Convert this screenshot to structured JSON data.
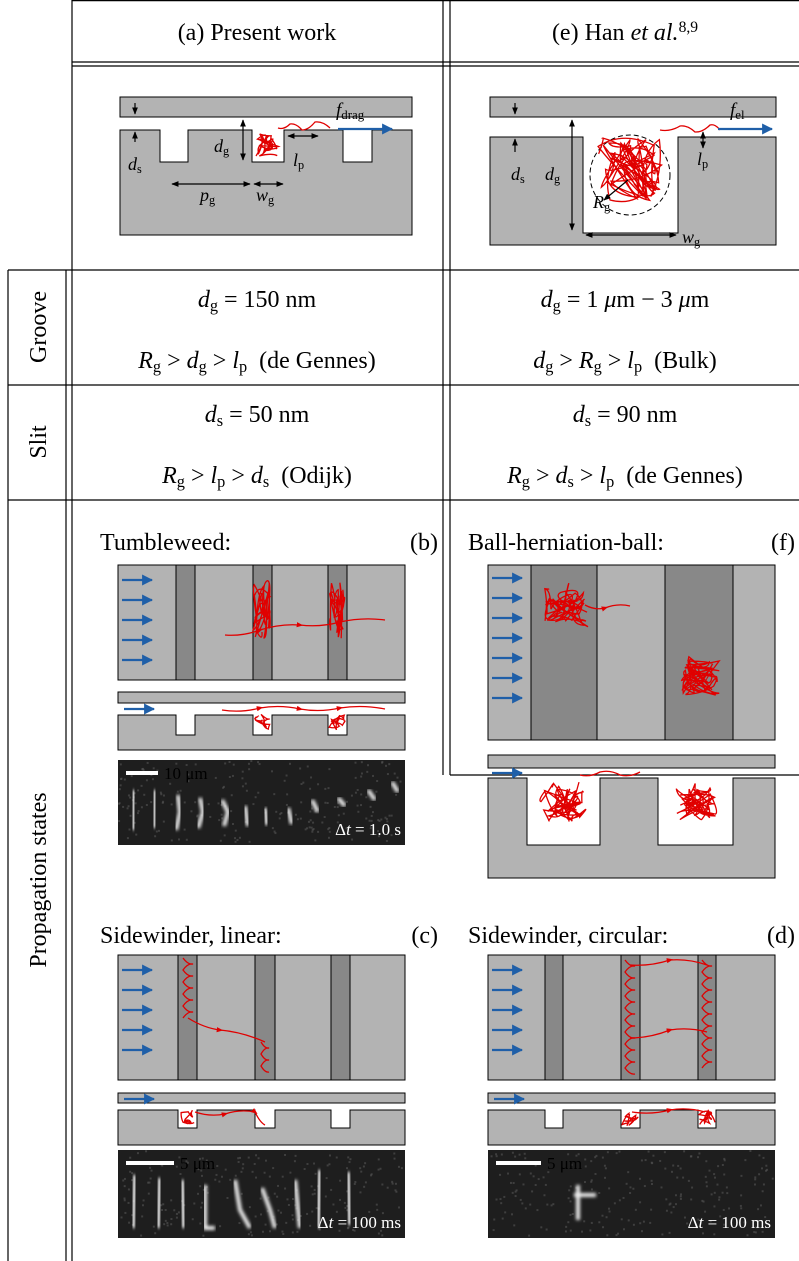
{
  "header": {
    "present": "(a) Present work",
    "han": [
      "(e) Han ",
      "et al.",
      "8,9"
    ]
  },
  "row_labels": {
    "groove": "Groove",
    "slit": "Slit",
    "propagation": "Propagation states"
  },
  "schematic_a": {
    "f_drag": [
      "f",
      "drag"
    ],
    "d_s": [
      "d",
      "s"
    ],
    "d_g": [
      "d",
      "g"
    ],
    "l_p": [
      "l",
      "p"
    ],
    "p_g": [
      "p",
      "g"
    ],
    "w_g": [
      "w",
      "g"
    ]
  },
  "schematic_e": {
    "f_el": [
      "f",
      "el"
    ],
    "d_s": [
      "d",
      "s"
    ],
    "d_g": [
      "d",
      "g"
    ],
    "l_p": [
      "l",
      "p"
    ],
    "R_g": [
      "R",
      "g"
    ],
    "w_g": [
      "w",
      "g"
    ]
  },
  "groove": {
    "present": [
      [
        "d",
        "g",
        " = 150 nm"
      ],
      [
        "R",
        "g",
        " > ",
        "d",
        "g",
        " > ",
        "l",
        "p",
        "  (de Gennes)"
      ]
    ],
    "han": [
      [
        "d",
        "g",
        " = 1 ",
        "μ",
        "m − 3 ",
        "μ",
        "m"
      ],
      [
        "d",
        "g",
        " > ",
        "R",
        "g",
        " > ",
        "l",
        "p",
        "  (Bulk)"
      ]
    ]
  },
  "slit": {
    "present": [
      [
        "d",
        "s",
        " = 50 nm"
      ],
      [
        "R",
        "g",
        " > ",
        "l",
        "p",
        " > ",
        "d",
        "s",
        "  (Odijk)"
      ]
    ],
    "han": [
      [
        "d",
        "s",
        " = 90 nm"
      ],
      [
        "R",
        "g",
        " > ",
        "d",
        "s",
        " > ",
        "l",
        "p",
        "  (de Gennes)"
      ]
    ]
  },
  "panels": {
    "b": {
      "title": "Tumbleweed:",
      "tag": "(b)",
      "scale": "10 μm",
      "dt": [
        "Δ",
        "t",
        " = 1.0 s"
      ]
    },
    "f": {
      "title": "Ball-herniation-ball:",
      "tag": "(f)"
    },
    "c": {
      "title": "Sidewinder, linear:",
      "tag": "(c)",
      "scale": "5 μm",
      "dt": [
        "Δ",
        "t",
        " = 100 ms"
      ]
    },
    "d": {
      "title": "Sidewinder, circular:",
      "tag": "(d)",
      "scale": "5 μm",
      "dt": [
        "Δ",
        "t",
        " = 100 ms"
      ]
    }
  }
}
